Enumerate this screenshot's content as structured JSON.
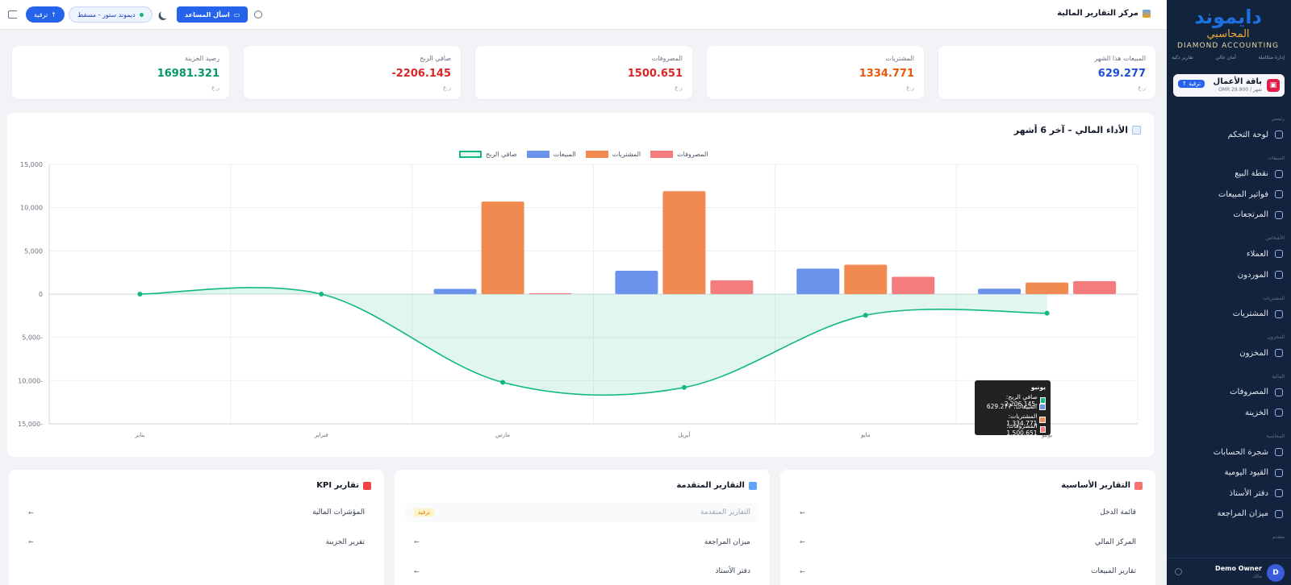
{
  "sidebar": {
    "logo_text": "دايموند",
    "logo_sub": "المحاسبي",
    "logo_en": "DIAMOND ACCOUNTING",
    "logo_links": [
      "إدارة متكاملة",
      "أمان عالي",
      "تقارير ذكية"
    ],
    "plan": {
      "name": "باقة الأعمال",
      "price": "OMR 29.900 / شهر",
      "upgrade": "ترقية ↑"
    },
    "sections": [
      {
        "label": "رئيسي",
        "items": [
          "لوحة التحكم"
        ]
      },
      {
        "label": "المبيعات",
        "items": [
          "نقطة البيع",
          "فواتير المبيعات",
          "المرتجعات"
        ]
      },
      {
        "label": "الأشخاص",
        "items": [
          "العملاء",
          "الموردون"
        ]
      },
      {
        "label": "المشتريات",
        "items": [
          "المشتريات"
        ]
      },
      {
        "label": "المخزون",
        "items": [
          "المخزون"
        ]
      },
      {
        "label": "المالية",
        "items": [
          "المصروفات",
          "الخزينة"
        ]
      },
      {
        "label": "المحاسبة",
        "items": [
          "شجرة الحسابات",
          "القيود اليومية",
          "دفتر الأستاذ",
          "ميزان المراجعة"
        ]
      },
      {
        "label": "متقدم",
        "items": []
      }
    ],
    "user": {
      "initial": "D",
      "name": "Demo Owner",
      "role": "مالك"
    }
  },
  "header": {
    "title": "مركز التقارير المالية",
    "ask_button": "اسأل المساعد",
    "store": "ديموند ستور - مسقط",
    "upgrade": "ترقية"
  },
  "stats": [
    {
      "label": "المبيعات هذا الشهر",
      "value": "629.277",
      "unit": "ر.ع",
      "color": "#1d4ed8"
    },
    {
      "label": "المشتريات",
      "value": "1334.771",
      "unit": "ر.ع",
      "color": "#ea580c"
    },
    {
      "label": "المصروفات",
      "value": "1500.651",
      "unit": "ر.ع",
      "color": "#dc2626"
    },
    {
      "label": "صافي الربح",
      "value": "-2206.145",
      "unit": "ر.ع",
      "color": "#dc2626"
    },
    {
      "label": "رصيد الخزينة",
      "value": "16981.321",
      "unit": "ر.ع",
      "color": "#059669"
    }
  ],
  "chart": {
    "title": "الأداء المالي – آخر 6 أشهر",
    "tooltip": {
      "title": "يونيو",
      "rows": [
        {
          "label": "صافي الربح: -2,206.145",
          "color": "#10b981"
        },
        {
          "label": "المبيعات: 629.277",
          "color": "#6b93ec"
        },
        {
          "label": "المشتريات: 1,334.771",
          "color": "#f08a50"
        },
        {
          "label": "المصروفات: 1,500.651",
          "color": "#f47c7c"
        }
      ]
    }
  },
  "chart_data": {
    "type": "bar",
    "categories": [
      "يناير",
      "فبراير",
      "مارس",
      "أبريل",
      "مايو",
      "يونيو"
    ],
    "series": [
      {
        "name": "المبيعات",
        "type": "bar",
        "color": "#6b93ec",
        "values": [
          0,
          0,
          600,
          2700,
          2950,
          629.277
        ]
      },
      {
        "name": "المشتريات",
        "type": "bar",
        "color": "#f08a50",
        "values": [
          0,
          0,
          10700,
          11900,
          3400,
          1334.771
        ]
      },
      {
        "name": "المصروفات",
        "type": "bar",
        "color": "#f47c7c",
        "values": [
          0,
          0,
          100,
          1600,
          2000,
          1500.651
        ]
      },
      {
        "name": "صافي الربح",
        "type": "line",
        "color": "#10b981",
        "values": [
          0,
          0,
          -10200,
          -10800,
          -2450,
          -2206.145
        ]
      }
    ],
    "ylim": [
      -15000,
      15000
    ],
    "yticks": [
      15000,
      10000,
      5000,
      0,
      -5000,
      -10000,
      -15000
    ],
    "ytick_labels": [
      "15,000",
      "10,000",
      "5,000",
      "0",
      "5,000-",
      "10,000-",
      "15,000-"
    ],
    "legend": "top-center",
    "grid": true
  },
  "reports": [
    {
      "title": "التقارير الأساسية",
      "icon_color": "#f87171",
      "rows": [
        {
          "label": "قائمة الدخل",
          "action": "←",
          "locked": false
        },
        {
          "label": "المركز المالي",
          "action": "←",
          "locked": false
        },
        {
          "label": "تقارير المبيعات",
          "action": "←",
          "locked": false
        }
      ]
    },
    {
      "title": "التقارير المتقدمة",
      "icon_color": "#60a5fa",
      "rows": [
        {
          "label": "التقارير المتقدمة",
          "action": "ترقية",
          "locked": true
        },
        {
          "label": "ميزان المراجعة",
          "action": "←",
          "locked": false
        },
        {
          "label": "دفتر الأستاذ",
          "action": "←",
          "locked": false
        }
      ]
    },
    {
      "title": "تقارير KPI",
      "icon_color": "#ef4444",
      "rows": [
        {
          "label": "المؤشرات المالية",
          "action": "←",
          "locked": false
        },
        {
          "label": "تقرير الخزينة",
          "action": "←",
          "locked": false
        }
      ]
    }
  ]
}
